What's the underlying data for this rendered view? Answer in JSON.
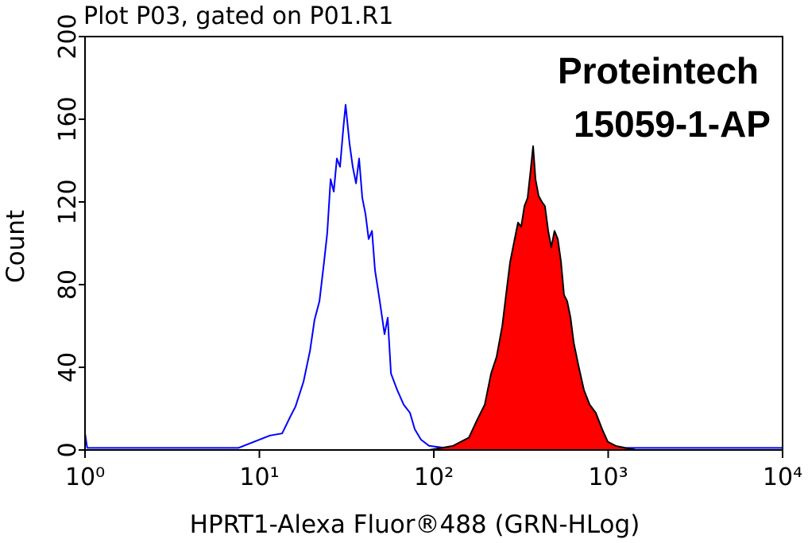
{
  "chart_data": {
    "type": "histogram-overlay",
    "title": "Plot P03, gated on P01.R1",
    "annotations": [
      "Proteintech",
      "15059-1-AP"
    ],
    "x_label": "HPRT1-Alexa Fluor®488 (GRN-HLog)",
    "y_label": "Count",
    "x_scale": "log",
    "xlim": [
      1,
      10000
    ],
    "xticks": [
      {
        "value": 1,
        "label": "10⁰"
      },
      {
        "value": 10,
        "label": "10¹"
      },
      {
        "value": 100,
        "label": "10²"
      },
      {
        "value": 1000,
        "label": "10³"
      },
      {
        "value": 10000,
        "label": "10⁴"
      }
    ],
    "ylim": [
      0,
      200
    ],
    "yticks": [
      0,
      40,
      80,
      120,
      160,
      200
    ],
    "series": [
      {
        "color": "#0000ff",
        "fill": false,
        "x": [
          1,
          1.03,
          7.57,
          9.34,
          11.5,
          13.5,
          15.0,
          16.1,
          17.9,
          19.5,
          20.7,
          22.1,
          23.5,
          24.5,
          25.6,
          26.7,
          27.8,
          29.0,
          30.3,
          31.2,
          32.9,
          34.3,
          35.8,
          37.3,
          38.9,
          40.6,
          42.3,
          44.2,
          46.0,
          49.0,
          52.2,
          54.4,
          56.8,
          61.7,
          67.1,
          73.0,
          77.8,
          84.5,
          94.0,
          116,
          10000
        ],
        "values": [
          8,
          1,
          1,
          4,
          7,
          8,
          16,
          21,
          33,
          48,
          63,
          72,
          91,
          105,
          131,
          125,
          141,
          137,
          156,
          167,
          148,
          137,
          129,
          141,
          122,
          114,
          102,
          106,
          87,
          72,
          56,
          64,
          37,
          29,
          22,
          18,
          10,
          5,
          2,
          1,
          1
        ]
      },
      {
        "color": "#ff0000",
        "fill": true,
        "x": [
          94.0,
          129,
          159,
          176,
          196,
          213,
          229,
          247,
          263,
          274,
          291,
          304,
          317,
          331,
          345,
          359,
          371,
          383,
          399,
          417,
          434,
          453,
          472,
          492,
          514,
          536,
          558,
          582,
          608,
          634,
          675,
          726,
          782,
          849,
          924,
          995,
          1104,
          1436
        ],
        "values": [
          0,
          2,
          6,
          14,
          22,
          37,
          45,
          60,
          79,
          91,
          102,
          110,
          108,
          118,
          122,
          135,
          147,
          131,
          123,
          120,
          118,
          106,
          98,
          106,
          102,
          91,
          75,
          72,
          64,
          52,
          41,
          29,
          22,
          18,
          10,
          4,
          2,
          0
        ]
      }
    ]
  }
}
